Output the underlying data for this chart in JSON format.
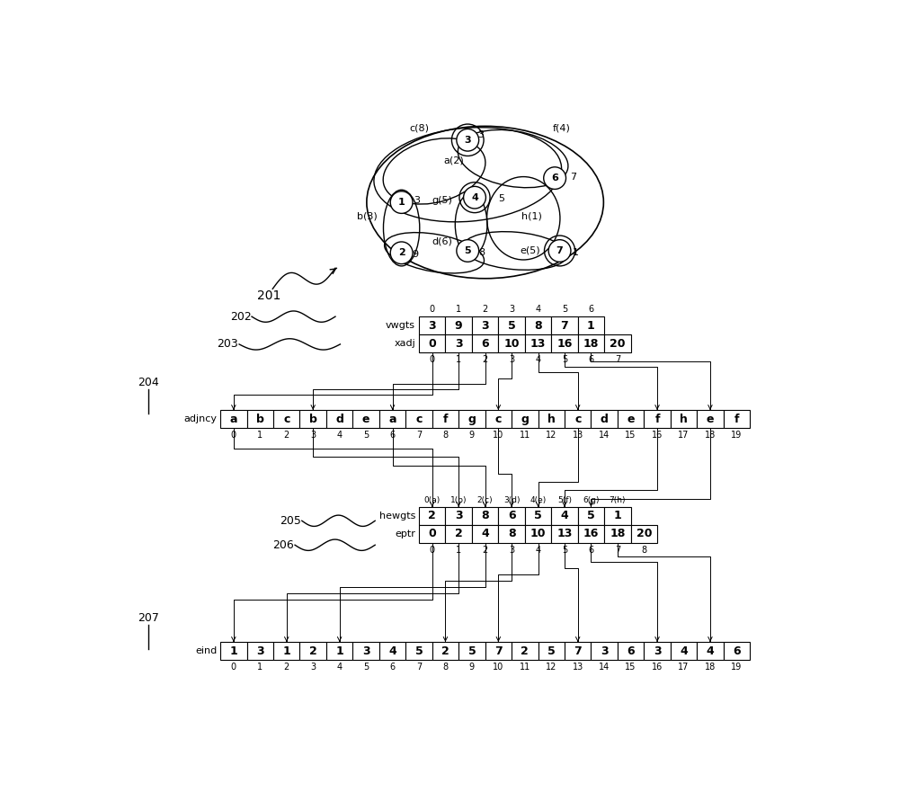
{
  "vwgts_values": [
    3,
    9,
    3,
    5,
    8,
    7,
    1
  ],
  "xadj_values": [
    0,
    3,
    6,
    10,
    13,
    16,
    18,
    20
  ],
  "adjncy_values": [
    "a",
    "b",
    "c",
    "b",
    "d",
    "e",
    "a",
    "c",
    "f",
    "g",
    "c",
    "g",
    "h",
    "c",
    "d",
    "e",
    "f",
    "h",
    "e",
    "f"
  ],
  "hewgts_values": [
    2,
    3,
    8,
    6,
    5,
    4,
    5,
    1
  ],
  "eptr_values": [
    0,
    2,
    4,
    8,
    10,
    13,
    16,
    18,
    20
  ],
  "eind_values": [
    1,
    3,
    1,
    2,
    1,
    3,
    4,
    5,
    2,
    5,
    7,
    2,
    5,
    7,
    3,
    6,
    3,
    4,
    4,
    6
  ],
  "bg_color": "#ffffff"
}
